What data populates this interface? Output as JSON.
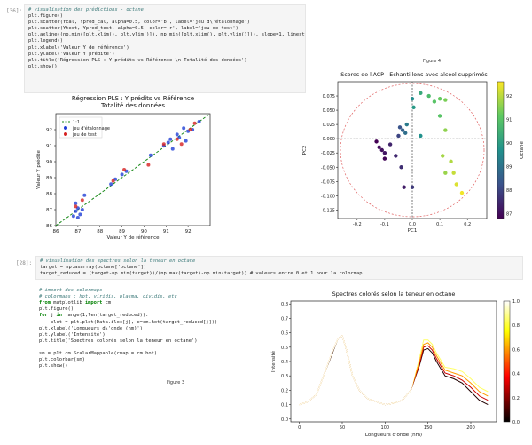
{
  "cell1": {
    "prompt": "[36]:",
    "code_lines": [
      "# visualisation des prédictions - octane",
      "plt.figure()",
      "plt.scatter(Ycal, Ypred_cal, alpha=0.5, color='b', label='jeu d\\'étalonnage')",
      "plt.scatter(Ytest, Ypred_test, alpha=0.5, color='r', label='jeu de test')",
      "plt.axline((np.min([plt.xlim(), plt.ylim()]), np.min([plt.xlim(), plt.ylim()])), slope=1, linestyle='--', color='g', label='1:1')",
      "plt.legend()",
      "plt.xlabel('Valeur Y de référence')",
      "plt.ylabel('Valeur Y prédite')",
      "plt.title('Régression PLS : Y prédits vs Référence \\n Totalité des données')",
      "plt.show()"
    ],
    "figure_caption": "Figure 4"
  },
  "cell2": {
    "prompt": "[28]:",
    "code_lines": [
      "# visualisation des spectres selon la teneur en octane",
      "target = np.asarray(octane['octane'])",
      "target_reduced = (target-np.min(target))/(np.max(target)-np.min(target)) # valeurs entre 0 et 1 pour la colormap",
      "",
      "# import des colormaps",
      "# colormaps : hot, viridis, plasma, cividis, etc",
      "from matplotlib import cm",
      "plt.figure()",
      "for j in range(1,len(target_reduced)):",
      "    plot = plt.plot(Data.iloc[j], c=cm.hot(target_reduced[j]))",
      "plt.xlabel('Longueurs d\\'onde (nm)')",
      "plt.ylabel('Intensité')",
      "plt.title('Spectres colorés selon la teneur en octane')",
      "",
      "sm = plt.cm.ScalarMappable(cmap = cm.hot)",
      "plt.colorbar(sm)",
      "plt.show()"
    ],
    "figure_caption": "Figure 3"
  },
  "chart_data": [
    {
      "type": "scatter",
      "title": "Régression PLS : Y prédits vs Référence\nTotalité des données",
      "xlabel": "Valeur Y de référence",
      "ylabel": "Valeur Y prédite",
      "xlim": [
        86,
        93
      ],
      "ylim": [
        86,
        93
      ],
      "xticks": [
        86,
        87,
        88,
        89,
        90,
        91,
        92
      ],
      "yticks": [
        86,
        87,
        88,
        89,
        90,
        91,
        92
      ],
      "legend": [
        "1:1",
        "jeu d'étalonnage",
        "jeu de test"
      ],
      "legend_loc": "top-left",
      "series": [
        {
          "name": "jeu d'étalonnage",
          "color": "#1f3fd6",
          "x": [
            86.8,
            86.9,
            87.0,
            87.1,
            87.2,
            86.9,
            87.3,
            88.5,
            88.7,
            89.0,
            89.2,
            90.3,
            90.9,
            91.2,
            91.3,
            91.6,
            91.8,
            91.9,
            92.0,
            92.2,
            92.5,
            91.1,
            91.5,
            87.0
          ],
          "y": [
            86.6,
            86.9,
            87.1,
            86.7,
            87.0,
            87.4,
            87.9,
            88.6,
            88.9,
            89.2,
            89.4,
            90.4,
            91.0,
            91.4,
            90.8,
            91.5,
            92.1,
            91.3,
            91.9,
            92.0,
            92.5,
            91.2,
            91.7,
            86.5
          ]
        },
        {
          "name": "jeu de test",
          "color": "#d62020",
          "x": [
            86.9,
            87.2,
            88.6,
            89.1,
            90.2,
            90.9,
            91.5,
            91.7,
            92.3,
            92.1
          ],
          "y": [
            87.2,
            87.6,
            88.8,
            89.5,
            89.8,
            91.1,
            91.4,
            91.1,
            92.4,
            92.0
          ]
        }
      ]
    },
    {
      "type": "scatter",
      "title": "Scores de l'ACP - Echantillons avec alcool supprimés",
      "xlabel": "PC1",
      "ylabel": "PC2",
      "xlim": [
        -0.27,
        0.27
      ],
      "ylim": [
        -0.14,
        0.1
      ],
      "xticks": [
        -0.2,
        -0.1,
        0.0,
        0.1,
        0.2
      ],
      "yticks": [
        -0.125,
        -0.1,
        -0.075,
        -0.05,
        -0.025,
        0.0,
        0.025,
        0.05,
        0.075
      ],
      "colorbar_label": "Octane",
      "colorbar_ticks": [
        87,
        88,
        89,
        90,
        91,
        92
      ],
      "points": [
        {
          "x": -0.13,
          "y": -0.005,
          "v": 86.8
        },
        {
          "x": -0.12,
          "y": -0.015,
          "v": 87.0
        },
        {
          "x": -0.11,
          "y": -0.02,
          "v": 87.1
        },
        {
          "x": -0.1,
          "y": -0.025,
          "v": 87.2
        },
        {
          "x": -0.1,
          "y": -0.035,
          "v": 86.9
        },
        {
          "x": -0.08,
          "y": -0.01,
          "v": 87.4
        },
        {
          "x": -0.06,
          "y": -0.03,
          "v": 87.5
        },
        {
          "x": -0.04,
          "y": -0.05,
          "v": 87.6
        },
        {
          "x": -0.03,
          "y": -0.085,
          "v": 87.3
        },
        {
          "x": 0.0,
          "y": -0.085,
          "v": 87.8
        },
        {
          "x": -0.05,
          "y": 0.005,
          "v": 88.0
        },
        {
          "x": -0.045,
          "y": 0.02,
          "v": 88.3
        },
        {
          "x": -0.035,
          "y": 0.015,
          "v": 88.6
        },
        {
          "x": -0.025,
          "y": 0.01,
          "v": 88.9
        },
        {
          "x": -0.02,
          "y": 0.025,
          "v": 89.2
        },
        {
          "x": 0.0,
          "y": 0.07,
          "v": 89.6
        },
        {
          "x": 0.005,
          "y": 0.055,
          "v": 89.9
        },
        {
          "x": 0.03,
          "y": 0.08,
          "v": 90.3
        },
        {
          "x": 0.03,
          "y": 0.005,
          "v": 89.7
        },
        {
          "x": 0.06,
          "y": 0.075,
          "v": 90.8
        },
        {
          "x": 0.08,
          "y": 0.065,
          "v": 91.0
        },
        {
          "x": 0.1,
          "y": 0.07,
          "v": 91.2
        },
        {
          "x": 0.12,
          "y": 0.068,
          "v": 91.4
        },
        {
          "x": 0.1,
          "y": 0.04,
          "v": 91.0
        },
        {
          "x": 0.12,
          "y": 0.015,
          "v": 91.6
        },
        {
          "x": 0.11,
          "y": -0.03,
          "v": 91.8
        },
        {
          "x": 0.14,
          "y": -0.04,
          "v": 91.9
        },
        {
          "x": 0.15,
          "y": -0.06,
          "v": 92.1
        },
        {
          "x": 0.16,
          "y": -0.08,
          "v": 92.3
        },
        {
          "x": 0.18,
          "y": -0.095,
          "v": 92.5
        },
        {
          "x": 0.12,
          "y": -0.06,
          "v": 91.7
        }
      ]
    },
    {
      "type": "line",
      "title": "Spectres colorés selon la teneur en octane",
      "xlabel": "Longueurs d'onde (nm)",
      "ylabel": "Intensité",
      "xlim": [
        -10,
        230
      ],
      "ylim": [
        -0.02,
        0.82
      ],
      "xticks": [
        0,
        50,
        100,
        150,
        200
      ],
      "yticks": [
        0.0,
        0.1,
        0.2,
        0.3,
        0.4,
        0.5,
        0.6,
        0.7,
        0.8
      ],
      "colorbar_ticks": [
        0.0,
        0.2,
        0.4,
        0.6,
        0.8,
        1.0
      ],
      "x": [
        0,
        10,
        20,
        30,
        38,
        45,
        50,
        55,
        62,
        70,
        80,
        90,
        100,
        110,
        120,
        130,
        140,
        145,
        150,
        155,
        160,
        170,
        180,
        190,
        200,
        210,
        220
      ],
      "curves": [
        {
          "c": 0.05,
          "y": [
            0.1,
            0.12,
            0.17,
            0.33,
            0.45,
            0.56,
            0.58,
            0.48,
            0.3,
            0.2,
            0.14,
            0.12,
            0.1,
            0.11,
            0.13,
            0.2,
            0.37,
            0.48,
            0.49,
            0.46,
            0.4,
            0.3,
            0.28,
            0.25,
            0.19,
            0.13,
            0.1
          ]
        },
        {
          "c": 0.3,
          "y": [
            0.1,
            0.12,
            0.17,
            0.33,
            0.46,
            0.56,
            0.58,
            0.48,
            0.3,
            0.2,
            0.14,
            0.12,
            0.1,
            0.11,
            0.13,
            0.2,
            0.38,
            0.5,
            0.51,
            0.48,
            0.42,
            0.32,
            0.3,
            0.27,
            0.22,
            0.16,
            0.13
          ]
        },
        {
          "c": 0.6,
          "y": [
            0.1,
            0.12,
            0.17,
            0.33,
            0.46,
            0.56,
            0.58,
            0.48,
            0.3,
            0.2,
            0.14,
            0.12,
            0.1,
            0.11,
            0.13,
            0.2,
            0.4,
            0.52,
            0.53,
            0.5,
            0.44,
            0.34,
            0.32,
            0.3,
            0.25,
            0.19,
            0.16
          ]
        },
        {
          "c": 0.85,
          "y": [
            0.1,
            0.12,
            0.17,
            0.33,
            0.46,
            0.56,
            0.58,
            0.48,
            0.3,
            0.2,
            0.14,
            0.12,
            0.1,
            0.11,
            0.13,
            0.2,
            0.43,
            0.55,
            0.55,
            0.52,
            0.46,
            0.36,
            0.35,
            0.33,
            0.28,
            0.22,
            0.19
          ]
        },
        {
          "c": 1.0,
          "y": [
            0.1,
            0.12,
            0.17,
            0.33,
            0.46,
            0.56,
            0.58,
            0.48,
            0.3,
            0.2,
            0.14,
            0.12,
            0.1,
            0.11,
            0.13,
            0.2,
            0.45,
            0.58,
            0.57,
            0.54,
            0.48,
            0.38,
            0.37,
            0.35,
            0.3,
            0.24,
            0.21
          ]
        }
      ]
    }
  ]
}
